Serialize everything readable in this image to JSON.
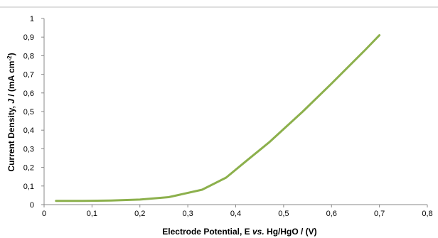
{
  "chart_data": {
    "type": "line",
    "title": "",
    "xlabel": "Electrode  Potential, E vs. Hg/HgO / (V)",
    "xlabel_parts": {
      "prefix": "Electrode  Potential, E ",
      "italic": "vs.",
      "suffix": " Hg/HgO / (V)"
    },
    "ylabel": "Current Density, J / (mA cm⁻²)",
    "ylabel_parts": {
      "prefix": "Current Density, ",
      "italic": "J",
      "suffix": " / (mA cm",
      "sup": "-2",
      "end": ")"
    },
    "xlim": [
      0,
      0.8
    ],
    "ylim": [
      0,
      1
    ],
    "x_ticks": [
      "0",
      "0,1",
      "0,2",
      "0,3",
      "0,4",
      "0,5",
      "0,6",
      "0,7",
      "0,8"
    ],
    "y_ticks": [
      "0",
      "0,1",
      "0,2",
      "0,3",
      "0,4",
      "0,5",
      "0,6",
      "0,7",
      "0,8",
      "0,9",
      "1"
    ],
    "grid": false,
    "legend": "none",
    "series": [
      {
        "color": "#8cb04c",
        "x": [
          0.025,
          0.08,
          0.14,
          0.2,
          0.26,
          0.33,
          0.38,
          0.42,
          0.47,
          0.54,
          0.6,
          0.67,
          0.7
        ],
        "y": [
          0.02,
          0.02,
          0.022,
          0.027,
          0.04,
          0.08,
          0.145,
          0.23,
          0.335,
          0.5,
          0.65,
          0.83,
          0.91
        ]
      }
    ]
  }
}
